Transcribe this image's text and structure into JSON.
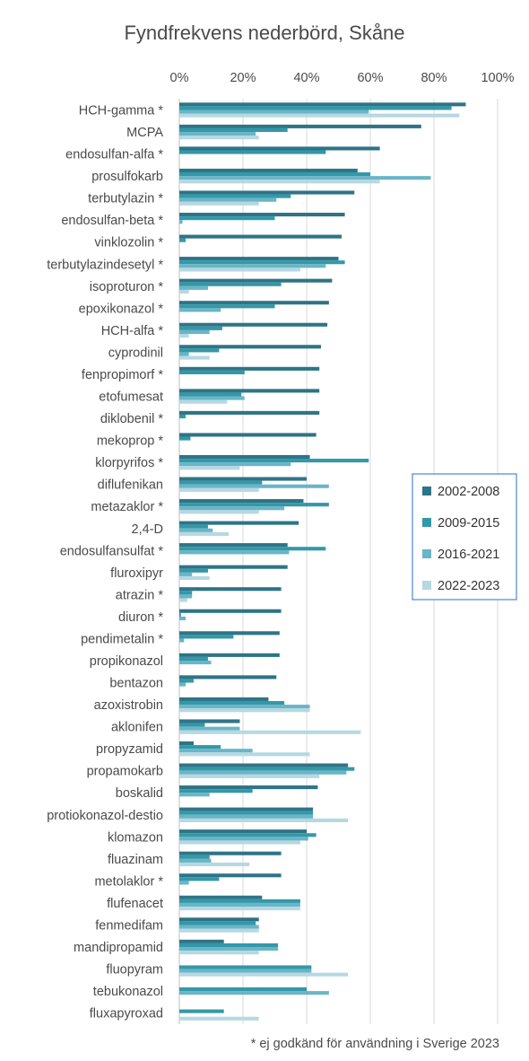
{
  "chart_data": {
    "type": "bar",
    "orientation": "horizontal",
    "title": "Fyndfrekvens nederbörd, Skåne",
    "footnote": "* ej godkänd för användning i Sverige 2023",
    "xlim": [
      0,
      100
    ],
    "x_ticks": [
      "0%",
      "20%",
      "40%",
      "60%",
      "80%",
      "100%"
    ],
    "grid": "vertical",
    "legend_position": "right-middle",
    "categories": [
      "HCH-gamma *",
      "MCPA",
      "endosulfan-alfa *",
      "prosulfokarb",
      "terbutylazin *",
      "endosulfan-beta *",
      "vinklozolin *",
      "terbutylazindesetyl *",
      "isoproturon *",
      "epoxikonazol *",
      "HCH-alfa *",
      "cyprodinil",
      "fenpropimorf *",
      "etofumesat",
      "diklobenil *",
      "mekoprop *",
      "klorpyrifos *",
      "diflufenikan",
      "metazaklor *",
      "2,4-D",
      "endosulfansulfat *",
      "fluroxipyr",
      "atrazin *",
      "diuron *",
      "pendimetalin *",
      "propikonazol",
      "bentazon",
      "azoxistrobin",
      "aklonifen",
      "propyzamid",
      "propamokarb",
      "boskalid",
      "protiokonazol-destio",
      "klomazon",
      "fluazinam",
      "metolaklor *",
      "flufenacet",
      "fenmedifam",
      "mandipropamid",
      "fluopyram",
      "tebukonazol",
      "fluxapyroxad"
    ],
    "series": [
      {
        "name": "2002-2008",
        "color": "#2e7487",
        "values": [
          90,
          76,
          63,
          56,
          55,
          52,
          51,
          50,
          48,
          47,
          46.5,
          44.5,
          44,
          44,
          44,
          43,
          41,
          40,
          39,
          37.5,
          34,
          34,
          32,
          32,
          31.5,
          31.5,
          30.5,
          28,
          19,
          4.5,
          53,
          43.5,
          42,
          40,
          32,
          32,
          26,
          25,
          14,
          0,
          0,
          0
        ]
      },
      {
        "name": "2009-2015",
        "color": "#3398a8",
        "values": [
          85.5,
          34,
          46,
          60,
          35,
          30,
          2,
          52,
          32,
          30,
          13.5,
          12.5,
          20.5,
          19.5,
          2,
          3.5,
          59.5,
          26,
          47,
          9,
          46,
          9,
          4,
          0.5,
          17,
          9,
          4.5,
          33,
          8,
          13,
          55,
          23,
          42,
          43,
          9.5,
          12.5,
          38,
          24,
          31,
          41.5,
          40,
          14
        ]
      },
      {
        "name": "2016-2021",
        "color": "#6ab5c7",
        "values": [
          59.5,
          24,
          0,
          79,
          30.5,
          1,
          0,
          46,
          9,
          13,
          9.5,
          3,
          0,
          20.5,
          0,
          0,
          35,
          47,
          33,
          10.5,
          34.5,
          4,
          4,
          2,
          1.5,
          10,
          2,
          41,
          19,
          23,
          52.5,
          9.5,
          42,
          40.5,
          10,
          3,
          38,
          25,
          31,
          41.5,
          47,
          0
        ]
      },
      {
        "name": "2022-2023",
        "color": "#b6d8e2",
        "values": [
          88,
          25,
          0,
          63,
          25,
          0,
          0,
          38,
          3,
          0,
          3,
          9.5,
          0,
          15,
          0,
          0,
          19,
          25,
          25,
          15.5,
          0,
          9.5,
          2.5,
          0,
          0,
          0,
          0,
          41,
          57,
          41,
          44,
          0,
          53,
          38,
          22,
          0,
          38,
          25,
          25,
          53,
          0,
          25
        ]
      }
    ]
  }
}
